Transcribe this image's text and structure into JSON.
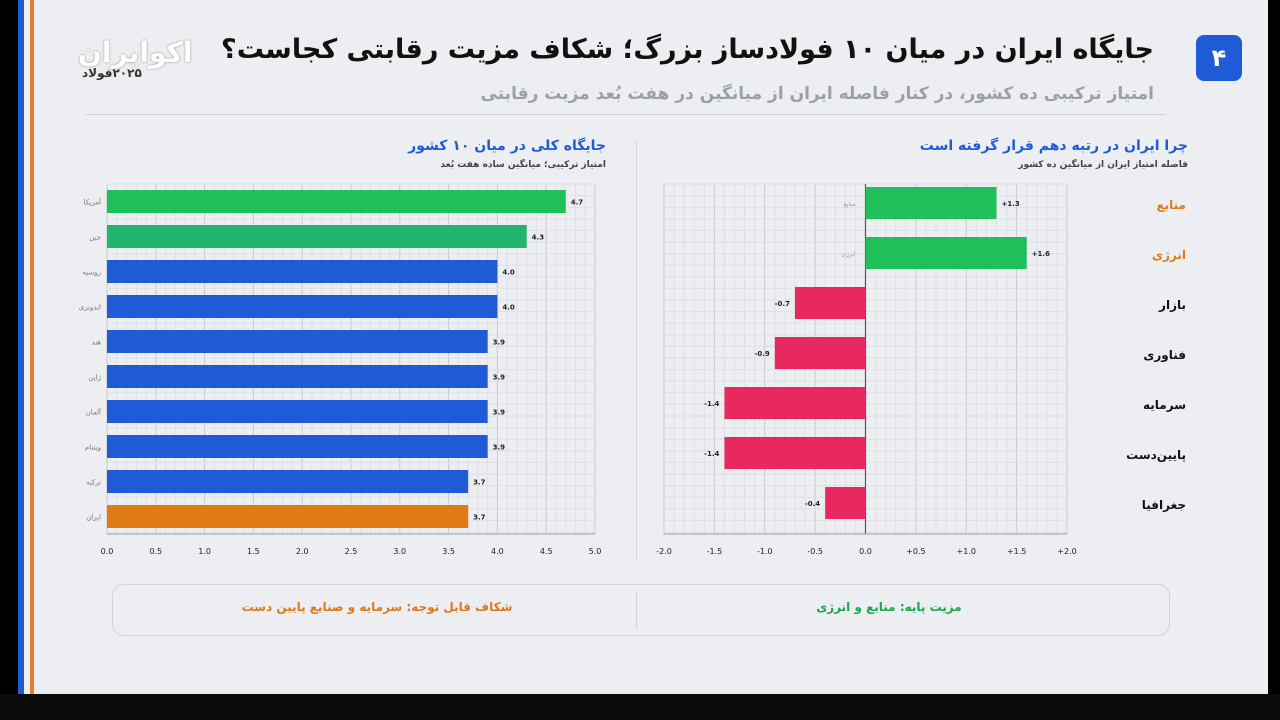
{
  "header": {
    "badge": "۴",
    "title": "جایگاه ایران در میان ۱۰ فولادساز بزرگ؛ شکاف مزیت رقابتی کجاست؟",
    "subtitle": "امتیاز ترکیبی ده کشور، در کنار فاصله ایران از میانگین در هفت بُعد مزیت رقابتی",
    "logo": "اکوایران",
    "logo_sub": "۲۰۲۵فولاد"
  },
  "left_panel": {
    "title": "جایگاه کلی در میان ۱۰ کشور",
    "subtitle": "امتیاز ترکیبی؛ میانگین ساده هفت بُعد"
  },
  "right_panel": {
    "title": "چرا ایران در رتبه دهم قرار گرفته است",
    "subtitle": "فاصله امتیاز ایران از میانگین ده کشور"
  },
  "footer": {
    "right": "مزیت پایه: منابع و انرژی",
    "left": "شکاف قابل توجه: سرمایه و صنایع پایین دست"
  },
  "colors": {
    "green": "#1fbf5a",
    "teal_green": "#22b56e",
    "blue": "#1f5bd6",
    "orange": "#e07a12",
    "red": "#e8285e",
    "accent": "#1f5bd6"
  },
  "chart_data": [
    {
      "type": "bar",
      "orientation": "horizontal",
      "title": "جایگاه کلی در میان ۱۰ کشور",
      "subtitle": "امتیاز ترکیبی؛ میانگین ساده هفت بُعد",
      "categories": [
        "آمریکا",
        "چین",
        "روسیه",
        "اندونزی",
        "هند",
        "ژاپن",
        "آلمان",
        "ویتنام",
        "ترکیه",
        "ایران"
      ],
      "values": [
        4.7,
        4.3,
        4.0,
        4.0,
        3.9,
        3.9,
        3.9,
        3.9,
        3.7,
        3.7
      ],
      "value_labels": [
        "4.7",
        "4.3",
        "4.0",
        "4.0",
        "3.9",
        "3.9",
        "3.9",
        "3.9",
        "3.7",
        "3.7"
      ],
      "bar_colors": [
        "#1fbf5a",
        "#22b56e",
        "#1f5bd6",
        "#1f5bd6",
        "#1f5bd6",
        "#1f5bd6",
        "#1f5bd6",
        "#1f5bd6",
        "#1f5bd6",
        "#e07a12"
      ],
      "xlim": [
        0,
        5
      ],
      "xticks": [
        "0.0",
        "0.5",
        "1.0",
        "1.5",
        "2.0",
        "2.5",
        "3.0",
        "3.5",
        "4.0",
        "4.5",
        "5.0"
      ],
      "grid": true
    },
    {
      "type": "bar",
      "orientation": "horizontal",
      "title": "چرا ایران در رتبه دهم قرار گرفته است",
      "subtitle": "فاصله امتیاز ایران از میانگین ده کشور",
      "categories": [
        "منابع",
        "انرژی",
        "بازار",
        "فناوری",
        "سرمایه",
        "پایین‌دست",
        "جغرافیا"
      ],
      "category_colors": [
        "#e07a12",
        "#e07a12",
        "#111111",
        "#111111",
        "#111111",
        "#111111",
        "#111111"
      ],
      "inner_labels": [
        "منابع",
        "انرژی",
        "",
        "",
        "",
        "",
        ""
      ],
      "values": [
        1.3,
        1.6,
        -0.7,
        -0.9,
        -1.4,
        -1.4,
        -0.4
      ],
      "value_labels": [
        "+1.3",
        "+1.6",
        "-0.7",
        "-0.9",
        "-1.4",
        "-1.4",
        "-0.4"
      ],
      "bar_colors": [
        "#1fbf5a",
        "#1fbf5a",
        "#e8285e",
        "#e8285e",
        "#e8285e",
        "#e8285e",
        "#e8285e"
      ],
      "xlim": [
        -2,
        2
      ],
      "xticks": [
        "-2.0",
        "-1.5",
        "-1.0",
        "-0.5",
        "0.0",
        "+0.5",
        "+1.0",
        "+1.5",
        "+2.0"
      ],
      "grid": true
    }
  ]
}
